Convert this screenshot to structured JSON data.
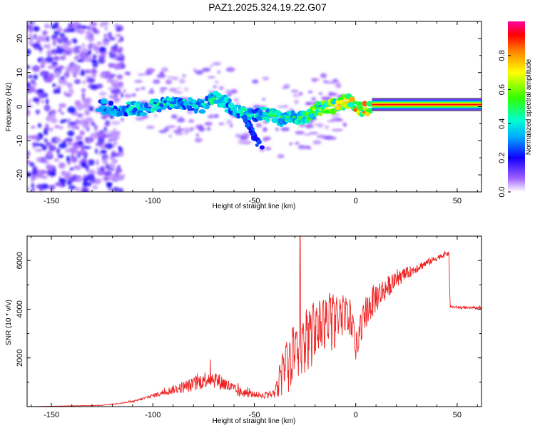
{
  "title": "PAZ1.2025.324.19.22.G07",
  "chart_data": [
    {
      "type": "heatmap",
      "name": "spectrogram",
      "xlabel": "Height of straight line (km)",
      "ylabel": "Frequency (Hz)",
      "xlim": [
        -162,
        62
      ],
      "ylim": [
        -25,
        25
      ],
      "xticks": [
        -150,
        -100,
        -50,
        0,
        50
      ],
      "yticks": [
        -20,
        -10,
        0,
        10,
        20
      ],
      "colorbar": {
        "label": "Normalized spectral amplitude",
        "range": [
          0,
          1
        ],
        "ticks": [
          "0.0",
          "0.2",
          "0.4",
          "0.6",
          "0.8"
        ]
      },
      "ridge": {
        "x": [
          -125,
          -115,
          -105,
          -95,
          -85,
          -75,
          -70,
          -62,
          -55,
          -50,
          -45,
          -40,
          -35,
          -30,
          -25,
          -20,
          -15,
          -10,
          -5,
          -2,
          0,
          3,
          6,
          8,
          20,
          40,
          62
        ],
        "y": [
          0,
          -0.8,
          -0.5,
          0.5,
          1.5,
          0,
          3,
          0,
          -2,
          -3,
          -2,
          -3,
          -4,
          -3,
          -3,
          -1,
          0,
          0.5,
          1.5,
          1.5,
          -0.5,
          -1,
          -0.8,
          0.6,
          0.6,
          0.6,
          0.6
        ],
        "amplitude": [
          0.35,
          0.4,
          0.45,
          0.45,
          0.4,
          0.4,
          0.5,
          0.4,
          0.45,
          0.4,
          0.45,
          0.5,
          0.45,
          0.5,
          0.55,
          0.6,
          0.65,
          0.7,
          0.75,
          0.75,
          0.85,
          0.8,
          0.85,
          1.0,
          1.0,
          1.0,
          1.0
        ]
      },
      "branch": {
        "x": [
          -55,
          -52,
          -50,
          -48,
          -46
        ],
        "y": [
          -3,
          -6,
          -9,
          -11,
          -12.5
        ]
      },
      "noise_region_x": [
        -162,
        -125
      ]
    },
    {
      "type": "line",
      "name": "snr",
      "xlabel": "Height of straight line (km)",
      "ylabel": "SNR (10 * v/v)",
      "xlim": [
        -162,
        62
      ],
      "ylim": [
        0,
        7000
      ],
      "xticks": [
        -150,
        -100,
        -50,
        0,
        50
      ],
      "yticks": [
        2000,
        4000,
        6000
      ],
      "color": "#ee2222",
      "series": [
        {
          "name": "SNR",
          "x": [
            -162,
            -125,
            -110,
            -100,
            -90,
            -80,
            -72,
            -65,
            -58,
            -50,
            -45,
            -40,
            -36,
            -33,
            -30,
            -27,
            -25,
            -22,
            -18,
            -12,
            -6,
            -2,
            0,
            5,
            10,
            20,
            30,
            40,
            45,
            46,
            46.5,
            55,
            62
          ],
          "y": [
            0,
            50,
            200,
            450,
            700,
            900,
            1200,
            950,
            600,
            500,
            450,
            500,
            1200,
            1600,
            1900,
            2200,
            2500,
            2700,
            3000,
            3300,
            3500,
            3400,
            2200,
            3900,
            4500,
            5200,
            5700,
            6100,
            6300,
            6250,
            4100,
            4050,
            4050
          ],
          "noise": [
            0,
            10,
            30,
            80,
            180,
            300,
            380,
            320,
            220,
            120,
            100,
            140,
            900,
            1000,
            1100,
            1000,
            1100,
            1100,
            1050,
            1000,
            900,
            800,
            600,
            700,
            650,
            300,
            200,
            120,
            100,
            100,
            60,
            50,
            50
          ]
        }
      ],
      "spike": {
        "x": -27.5,
        "y": 7000
      }
    }
  ]
}
